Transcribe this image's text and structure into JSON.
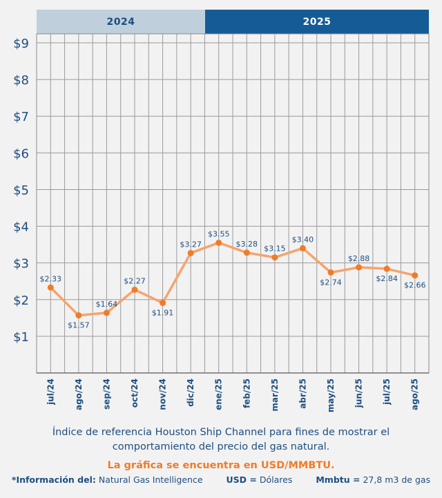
{
  "header": {
    "year_left": "2024",
    "year_right": "2025"
  },
  "chart_data": {
    "type": "line",
    "categories": [
      "jul/24",
      "ago/24",
      "sep/24",
      "oct/24",
      "nov/24",
      "dic/24",
      "ene/25",
      "feb/25",
      "mar/25",
      "abr/25",
      "may/25",
      "jun/25",
      "jul/25",
      "ago/25"
    ],
    "values": [
      2.33,
      1.57,
      1.64,
      2.27,
      1.91,
      3.27,
      3.55,
      3.28,
      3.15,
      3.4,
      2.74,
      2.88,
      2.84,
      2.66
    ],
    "data_labels": [
      "$2.33",
      "$1.57",
      "$1.64",
      "$2.27",
      "$1.91",
      "$3.27",
      "$3.55",
      "$3.28",
      "$3.15",
      "$3.40",
      "$2.74",
      "$2.88",
      "$2.84",
      "$2.66"
    ],
    "y_ticks": [
      1,
      2,
      3,
      4,
      5,
      6,
      7,
      8,
      9
    ],
    "y_tick_labels": [
      "$1",
      "$2",
      "$3",
      "$4",
      "$5",
      "$6",
      "$7",
      "$8",
      "$9"
    ],
    "ylim": [
      0,
      9
    ],
    "grid": true,
    "line_color": "#f5a46b",
    "marker_color": "#f07c28",
    "label_color": "#1e4e80"
  },
  "captions": {
    "main_line1": "Índice de referencia Houston Ship Channel para fines de mostrar el",
    "main_line2": "comportamiento del precio del gas natural.",
    "note": "La gráfica se encuentra en USD/MMBTU."
  },
  "footer": {
    "source_label": "*Información del:",
    "source_value": "Natural Gas Intelligence",
    "usd_label": "USD =",
    "usd_value": "Dólares",
    "mmbtu_label": "Mmbtu =",
    "mmbtu_value": "27,8 m3 de gas"
  }
}
